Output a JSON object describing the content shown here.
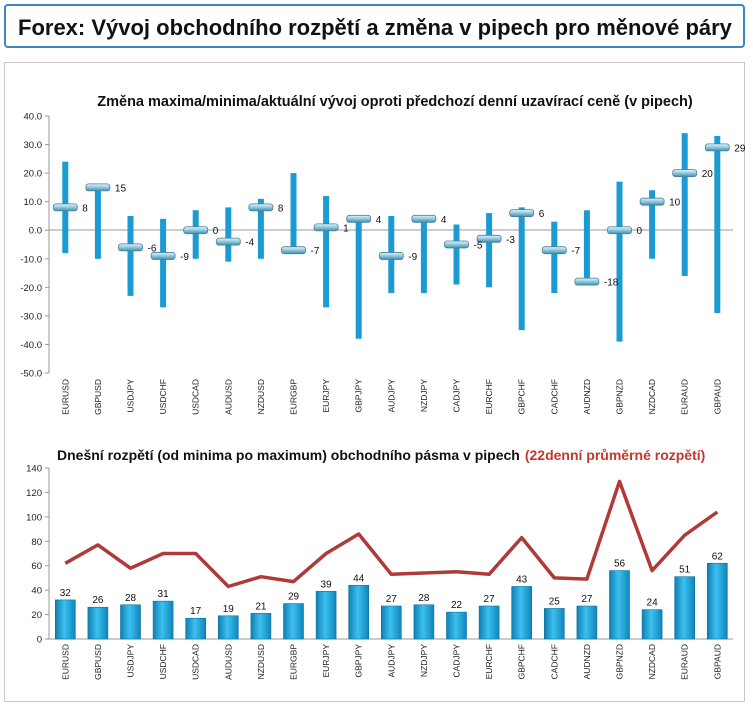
{
  "header": {
    "title": "Forex: Vývoj obchodního rozpětí a změna v pipech pro měnové páry"
  },
  "chart_data": [
    {
      "type": "range",
      "title": "Změna maxima/minima/aktuální vývoj oproti předchozí denní uzavírací ceně (v pipech)",
      "categories": [
        "EURUSD",
        "GBPUSD",
        "USDJPY",
        "USDCHF",
        "USDCAD",
        "AUDUSD",
        "NZDUSD",
        "EURGBP",
        "EURJPY",
        "GBPJPY",
        "AUDJPY",
        "NZDJPY",
        "CADJPY",
        "EURCHF",
        "GBPCHF",
        "CADCHF",
        "AUDNZD",
        "GBPNZD",
        "NZDCAD",
        "EURAUD",
        "GBPAUD"
      ],
      "high": [
        24,
        15,
        5,
        4,
        7,
        8,
        11,
        20,
        12,
        5,
        5,
        5,
        2,
        6,
        8,
        3,
        7,
        17,
        14,
        34,
        33
      ],
      "low": [
        -8,
        -10,
        -23,
        -27,
        -10,
        -11,
        -10,
        -8,
        -27,
        -38,
        -22,
        -22,
        -19,
        -20,
        -35,
        -22,
        -19,
        -39,
        -10,
        -16,
        -29
      ],
      "current": [
        8,
        15,
        -6,
        -9,
        0,
        -4,
        8,
        -7,
        1,
        4,
        -9,
        4,
        -5,
        -3,
        6,
        -7,
        -18,
        0,
        10,
        20,
        29
      ],
      "current_labels": [
        "8",
        "15",
        "-6",
        "-9",
        "0",
        "-4",
        "8",
        "-7",
        "1",
        "4",
        "-9",
        "4",
        "-5",
        "-3",
        "6",
        "-7",
        "-18",
        "0",
        "10",
        "20",
        "29"
      ],
      "ylim": [
        -50,
        40
      ],
      "yticks": [
        "40.0",
        "30.0",
        "20.0",
        "10.0",
        "0.0",
        "-10.0",
        "-20.0",
        "-30.0",
        "-40.0",
        "-50.0"
      ],
      "bar_color": "#1a9bd1",
      "grid": false
    },
    {
      "type": "bar+line",
      "title": "Dnešní rozpětí (od minima po maximum) obchodního pásma v pipech",
      "title_accent": "(22denní průměrné rozpětí)",
      "categories": [
        "EURUSD",
        "GBPUSD",
        "USDJPY",
        "USDCHF",
        "USDCAD",
        "AUDUSD",
        "NZDUSD",
        "EURGBP",
        "EURJPY",
        "GBPJPY",
        "AUDJPY",
        "NZDJPY",
        "CADJPY",
        "EURCHF",
        "GBPCHF",
        "CADCHF",
        "AUDNZD",
        "GBPNZD",
        "NZDCAD",
        "EURAUD",
        "GBPAUD"
      ],
      "values": [
        32,
        26,
        28,
        31,
        17,
        19,
        21,
        29,
        39,
        44,
        27,
        28,
        22,
        27,
        43,
        25,
        27,
        56,
        24,
        51,
        62
      ],
      "value_labels": [
        "32",
        "26",
        "28",
        "31",
        "17",
        "19",
        "21",
        "29",
        "39",
        "44",
        "27",
        "28",
        "22",
        "27",
        "43",
        "25",
        "27",
        "56",
        "24",
        "51",
        "62"
      ],
      "avg_range": [
        62,
        77,
        58,
        70,
        70,
        43,
        51,
        47,
        70,
        86,
        53,
        54,
        55,
        53,
        83,
        50,
        49,
        129,
        56,
        85,
        104
      ],
      "ylim": [
        0,
        140
      ],
      "yticks": [
        "140",
        "120",
        "100",
        "80",
        "60",
        "40",
        "20",
        "0"
      ],
      "bar_color": "#1a9bd1",
      "line_color": "#b03a3a",
      "accent_color": "#c0392b",
      "grid": false
    }
  ]
}
